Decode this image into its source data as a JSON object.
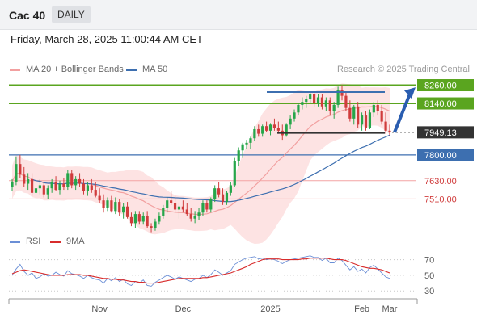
{
  "header": {
    "symbol": "Cac 40",
    "interval": "DAILY",
    "timestamp": "Friday, March 28, 2025 11:00:44 AM CET"
  },
  "legend": {
    "bollinger": "MA 20 + Bollinger Bands",
    "ma50": "MA 50",
    "credit": "Research © 2025 Trading Central",
    "rsi": "RSI",
    "rsi_ma": "9MA"
  },
  "colors": {
    "up": "#26a64a",
    "down": "#d03c3c",
    "ma20": "#f2a0a0",
    "band_fill": "#fde3e3",
    "ma50": "#3d6fb0",
    "resistance": "#5aa51f",
    "support": "#3d6fb0",
    "minor_support": "#f4a4a4",
    "current": "#333333",
    "arrow": "#2a5db0",
    "rsi": "#6b8fd6",
    "rsi_ma": "#d82c2c"
  },
  "chart_data": [
    {
      "type": "candlestick",
      "title": "Cac 40",
      "x_ticks": [
        "Nov",
        "Dec",
        "2025",
        "Feb",
        "Mar"
      ],
      "ylim": [
        7320,
        8300
      ],
      "levels": [
        {
          "label": "8260.00",
          "value": 8260,
          "kind": "resistance"
        },
        {
          "label": "8140.00",
          "value": 8140,
          "kind": "resistance"
        },
        {
          "label": "7949.13",
          "value": 7949.13,
          "kind": "current"
        },
        {
          "label": "7800.00",
          "value": 7800,
          "kind": "support"
        },
        {
          "label": "7630.00",
          "value": 7630,
          "kind": "minor_support"
        },
        {
          "label": "7510.00",
          "value": 7510,
          "kind": "minor_support"
        }
      ],
      "range_box": {
        "top": 8215,
        "bottom": 7945
      },
      "projection": {
        "from": 7950,
        "to": 8230
      },
      "start_date": "2024-10-02",
      "candles": [
        [
          7590,
          7640,
          7560,
          7620
        ],
        [
          7620,
          7790,
          7600,
          7740
        ],
        [
          7740,
          7800,
          7650,
          7670
        ],
        [
          7670,
          7720,
          7590,
          7610
        ],
        [
          7610,
          7680,
          7570,
          7640
        ],
        [
          7640,
          7680,
          7530,
          7550
        ],
        [
          7550,
          7620,
          7490,
          7580
        ],
        [
          7580,
          7640,
          7540,
          7600
        ],
        [
          7600,
          7620,
          7520,
          7540
        ],
        [
          7540,
          7600,
          7510,
          7580
        ],
        [
          7580,
          7640,
          7550,
          7620
        ],
        [
          7620,
          7660,
          7560,
          7570
        ],
        [
          7570,
          7630,
          7540,
          7610
        ],
        [
          7610,
          7650,
          7570,
          7590
        ],
        [
          7590,
          7700,
          7570,
          7680
        ],
        [
          7680,
          7700,
          7580,
          7600
        ],
        [
          7600,
          7660,
          7570,
          7640
        ],
        [
          7640,
          7680,
          7590,
          7610
        ],
        [
          7610,
          7640,
          7540,
          7560
        ],
        [
          7560,
          7620,
          7530,
          7600
        ],
        [
          7600,
          7640,
          7550,
          7570
        ],
        [
          7570,
          7620,
          7520,
          7530
        ],
        [
          7530,
          7580,
          7480,
          7500
        ],
        [
          7500,
          7540,
          7420,
          7450
        ],
        [
          7450,
          7520,
          7430,
          7500
        ],
        [
          7500,
          7530,
          7420,
          7430
        ],
        [
          7430,
          7520,
          7410,
          7490
        ],
        [
          7490,
          7510,
          7400,
          7420
        ],
        [
          7420,
          7480,
          7380,
          7460
        ],
        [
          7460,
          7490,
          7380,
          7390
        ],
        [
          7390,
          7420,
          7330,
          7350
        ],
        [
          7350,
          7430,
          7320,
          7410
        ],
        [
          7410,
          7430,
          7340,
          7360
        ],
        [
          7360,
          7420,
          7340,
          7400
        ],
        [
          7400,
          7430,
          7320,
          7330
        ],
        [
          7330,
          7350,
          7290,
          7320
        ],
        [
          7320,
          7380,
          7300,
          7360
        ],
        [
          7360,
          7420,
          7340,
          7400
        ],
        [
          7400,
          7470,
          7380,
          7450
        ],
        [
          7450,
          7520,
          7420,
          7500
        ],
        [
          7500,
          7560,
          7470,
          7480
        ],
        [
          7480,
          7530,
          7420,
          7440
        ],
        [
          7440,
          7480,
          7380,
          7460
        ],
        [
          7460,
          7500,
          7420,
          7440
        ],
        [
          7440,
          7480,
          7400,
          7410
        ],
        [
          7410,
          7450,
          7360,
          7380
        ],
        [
          7380,
          7430,
          7350,
          7400
        ],
        [
          7400,
          7450,
          7370,
          7420
        ],
        [
          7420,
          7500,
          7400,
          7480
        ],
        [
          7480,
          7500,
          7420,
          7440
        ],
        [
          7440,
          7520,
          7420,
          7510
        ],
        [
          7510,
          7600,
          7490,
          7580
        ],
        [
          7580,
          7620,
          7520,
          7540
        ],
        [
          7540,
          7580,
          7470,
          7490
        ],
        [
          7490,
          7560,
          7470,
          7550
        ],
        [
          7550,
          7620,
          7530,
          7600
        ],
        [
          7600,
          7780,
          7590,
          7760
        ],
        [
          7760,
          7850,
          7730,
          7830
        ],
        [
          7830,
          7880,
          7780,
          7870
        ],
        [
          7870,
          7900,
          7840,
          7880
        ],
        [
          7880,
          7920,
          7840,
          7910
        ],
        [
          7910,
          7990,
          7890,
          7970
        ],
        [
          7970,
          8000,
          7920,
          7940
        ],
        [
          7940,
          8000,
          7920,
          7990
        ],
        [
          7990,
          8020,
          7950,
          7960
        ],
        [
          7960,
          8010,
          7930,
          8000
        ],
        [
          8000,
          8040,
          7960,
          7980
        ],
        [
          7980,
          8020,
          7940,
          7960
        ],
        [
          7960,
          8000,
          7900,
          7930
        ],
        [
          7930,
          8010,
          7920,
          8000
        ],
        [
          8000,
          8060,
          7970,
          8040
        ],
        [
          8040,
          8100,
          8020,
          8080
        ],
        [
          8080,
          8140,
          8060,
          8130
        ],
        [
          8130,
          8180,
          8100,
          8150
        ],
        [
          8150,
          8190,
          8110,
          8170
        ],
        [
          8170,
          8220,
          8140,
          8200
        ],
        [
          8200,
          8220,
          8120,
          8140
        ],
        [
          8140,
          8200,
          8120,
          8180
        ],
        [
          8180,
          8200,
          8100,
          8120
        ],
        [
          8120,
          8180,
          8090,
          8160
        ],
        [
          8160,
          8180,
          8060,
          8090
        ],
        [
          8090,
          8150,
          8040,
          8130
        ],
        [
          8130,
          8250,
          8110,
          8230
        ],
        [
          8230,
          8260,
          8160,
          8190
        ],
        [
          8190,
          8220,
          8090,
          8110
        ],
        [
          8110,
          8160,
          8020,
          8040
        ],
        [
          8040,
          8130,
          8000,
          8120
        ],
        [
          8120,
          8150,
          7980,
          8000
        ],
        [
          8000,
          8080,
          7960,
          8060
        ],
        [
          8060,
          8090,
          7960,
          7980
        ],
        [
          7980,
          8100,
          7970,
          8080
        ],
        [
          8080,
          8150,
          8050,
          8130
        ],
        [
          8130,
          8160,
          8060,
          8090
        ],
        [
          8090,
          8130,
          8000,
          8020
        ],
        [
          8020,
          8080,
          7940,
          7960
        ],
        [
          7960,
          8000,
          7930,
          7949
        ]
      ]
    },
    {
      "type": "line",
      "title": "RSI",
      "yticks": [
        70,
        50,
        30
      ],
      "ylim": [
        24,
        80
      ],
      "series": [
        {
          "name": "RSI",
          "values": [
            50,
            58,
            64,
            55,
            50,
            53,
            46,
            48,
            52,
            49,
            50,
            54,
            51,
            49,
            56,
            52,
            51,
            49,
            46,
            50,
            47,
            45,
            44,
            40,
            46,
            43,
            47,
            42,
            45,
            39,
            37,
            42,
            40,
            44,
            37,
            36,
            41,
            44,
            47,
            50,
            48,
            45,
            48,
            46,
            44,
            42,
            45,
            46,
            50,
            47,
            51,
            57,
            54,
            50,
            53,
            56,
            64,
            67,
            70,
            72,
            73,
            74,
            71,
            72,
            70,
            71,
            70,
            68,
            65,
            68,
            70,
            71,
            72,
            73,
            74,
            75,
            73,
            73,
            69,
            72,
            66,
            66,
            72,
            69,
            63,
            57,
            61,
            55,
            58,
            53,
            60,
            63,
            58,
            53,
            48,
            46
          ]
        },
        {
          "name": "9MA",
          "values": [
            52,
            54,
            56,
            57,
            56,
            55,
            54,
            53,
            52,
            51,
            50,
            50,
            50,
            50,
            51,
            51,
            51,
            51,
            50,
            50,
            49,
            48,
            47,
            46,
            46,
            45,
            45,
            44,
            44,
            43,
            42,
            42,
            41,
            41,
            40,
            40,
            40,
            41,
            42,
            43,
            44,
            45,
            46,
            46,
            46,
            46,
            46,
            46,
            47,
            47,
            48,
            49,
            50,
            51,
            52,
            53,
            55,
            57,
            59,
            61,
            64,
            66,
            68,
            70,
            71,
            71,
            71,
            71,
            70,
            70,
            70,
            70,
            70,
            71,
            71,
            72,
            72,
            72,
            72,
            72,
            71,
            70,
            70,
            70,
            69,
            67,
            65,
            63,
            61,
            60,
            59,
            59,
            58,
            57,
            55,
            53
          ]
        }
      ]
    }
  ]
}
